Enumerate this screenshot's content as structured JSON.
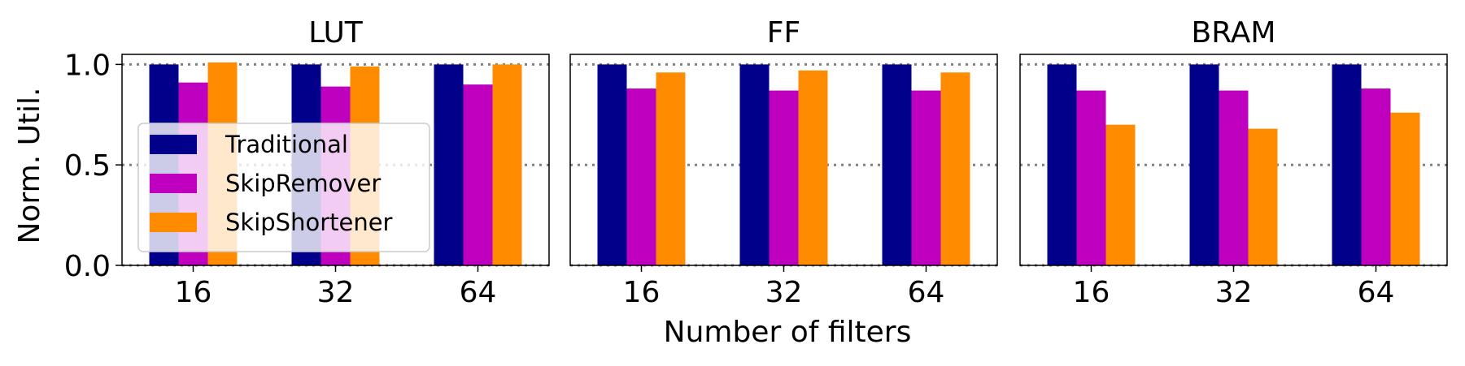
{
  "figure": {
    "xlabel": "Number of filters",
    "ylabel": "Norm. Util."
  },
  "chart_data": [
    {
      "type": "bar",
      "title": "LUT",
      "categories": [
        "16",
        "32",
        "64"
      ],
      "series": [
        {
          "name": "Traditional",
          "values": [
            1.0,
            1.0,
            1.0
          ]
        },
        {
          "name": "SkipRemover",
          "values": [
            0.91,
            0.89,
            0.9
          ]
        },
        {
          "name": "SkipShortener",
          "values": [
            1.01,
            0.99,
            1.0
          ]
        }
      ],
      "ylim": [
        0,
        1.05
      ],
      "yticks": [
        "0.0",
        "0.5",
        "1.0"
      ],
      "grid": "dotted horizontal at 0, 0.5, 1.0",
      "legend": "lower-left"
    },
    {
      "type": "bar",
      "title": "FF",
      "categories": [
        "16",
        "32",
        "64"
      ],
      "series": [
        {
          "name": "Traditional",
          "values": [
            1.0,
            1.0,
            1.0
          ]
        },
        {
          "name": "SkipRemover",
          "values": [
            0.88,
            0.87,
            0.87
          ]
        },
        {
          "name": "SkipShortener",
          "values": [
            0.96,
            0.97,
            0.96
          ]
        }
      ],
      "ylim": [
        0,
        1.05
      ],
      "grid": "dotted horizontal at 0, 0.5, 1.0"
    },
    {
      "type": "bar",
      "title": "BRAM",
      "categories": [
        "16",
        "32",
        "64"
      ],
      "series": [
        {
          "name": "Traditional",
          "values": [
            1.0,
            1.0,
            1.0
          ]
        },
        {
          "name": "SkipRemover",
          "values": [
            0.87,
            0.87,
            0.88
          ]
        },
        {
          "name": "SkipShortener",
          "values": [
            0.7,
            0.68,
            0.76
          ]
        }
      ],
      "ylim": [
        0,
        1.05
      ],
      "grid": "dotted horizontal at 0, 0.5, 1.0"
    }
  ],
  "colors": {
    "Traditional": "#00008b",
    "SkipRemover": "#bf00bf",
    "SkipShortener": "#ff8c00",
    "grid": "#808080"
  }
}
